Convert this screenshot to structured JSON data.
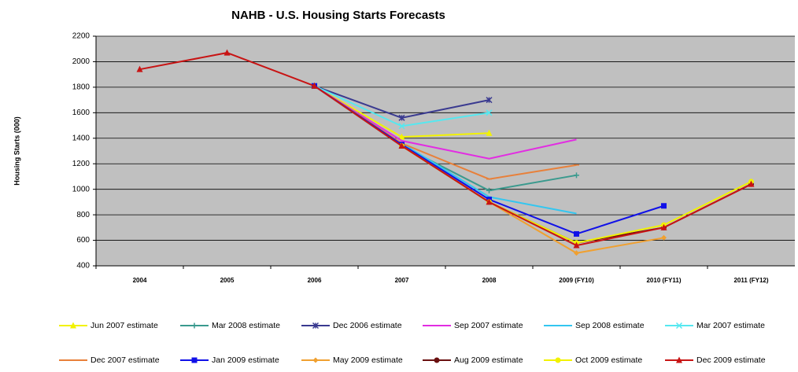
{
  "chart_data": {
    "type": "line",
    "title": "NAHB - U.S. Housing Starts Forecasts",
    "y_label": "Housing Starts (000)",
    "categories": [
      "2004",
      "2005",
      "2006",
      "2007",
      "2008",
      "2009 (FY10)",
      "2010 (FY11)",
      "2011 (FY12)"
    ],
    "ylim": [
      400,
      2200
    ],
    "yticks": [
      400,
      600,
      800,
      1000,
      1200,
      1400,
      1600,
      1800,
      2000,
      2200
    ],
    "grid": true,
    "legend": "bottom",
    "series": [
      {
        "name": "Jun 2007  estimate",
        "color": "#f2f200",
        "marker": "triangle",
        "values": [
          null,
          null,
          1810,
          1410,
          1440,
          null,
          null,
          null
        ]
      },
      {
        "name": "Mar 2008 estimate",
        "color": "#3a9a8e",
        "marker": "plus",
        "values": [
          null,
          null,
          1810,
          1340,
          990,
          1110,
          null,
          null
        ]
      },
      {
        "name": "Dec 2006 estimate",
        "color": "#3a3a90",
        "marker": "star",
        "values": [
          null,
          null,
          1810,
          1560,
          1700,
          null,
          null,
          null
        ]
      },
      {
        "name": "Sep 2007 estimate",
        "color": "#e22de2",
        "marker": "none",
        "values": [
          null,
          null,
          1810,
          1380,
          1240,
          1390,
          null,
          null
        ]
      },
      {
        "name": "Sep 2008 estimate",
        "color": "#33c6f0",
        "marker": "none",
        "values": [
          null,
          null,
          1810,
          1360,
          940,
          810,
          null,
          null
        ]
      },
      {
        "name": "Mar 2007 estimate",
        "color": "#55e8f0",
        "marker": "x",
        "values": [
          null,
          null,
          1810,
          1495,
          1600,
          null,
          null,
          null
        ]
      },
      {
        "name": "Dec 2007 estimate",
        "color": "#e8803a",
        "marker": "dash",
        "values": [
          null,
          null,
          1810,
          1360,
          1080,
          1190,
          null,
          null
        ]
      },
      {
        "name": "Jan 2009  estimate",
        "color": "#1010e8",
        "marker": "square",
        "values": [
          null,
          null,
          1810,
          1350,
          920,
          650,
          870,
          null
        ]
      },
      {
        "name": "May 2009 estimate",
        "color": "#f0a030",
        "marker": "diamond",
        "values": [
          null,
          null,
          null,
          1340,
          900,
          500,
          620,
          null
        ]
      },
      {
        "name": "Aug 2009 estimate",
        "color": "#6a1010",
        "marker": "circle",
        "values": [
          null,
          null,
          null,
          1340,
          900,
          580,
          700,
          1040
        ]
      },
      {
        "name": "Oct 2009 estimate",
        "color": "#f2f200",
        "marker": "circle",
        "values": [
          null,
          null,
          null,
          1340,
          900,
          580,
          720,
          1060
        ]
      },
      {
        "name": "Dec 2009 estimate",
        "color": "#c81414",
        "marker": "triangle",
        "values": [
          1940,
          2070,
          1810,
          1340,
          900,
          560,
          700,
          1040
        ]
      }
    ]
  }
}
